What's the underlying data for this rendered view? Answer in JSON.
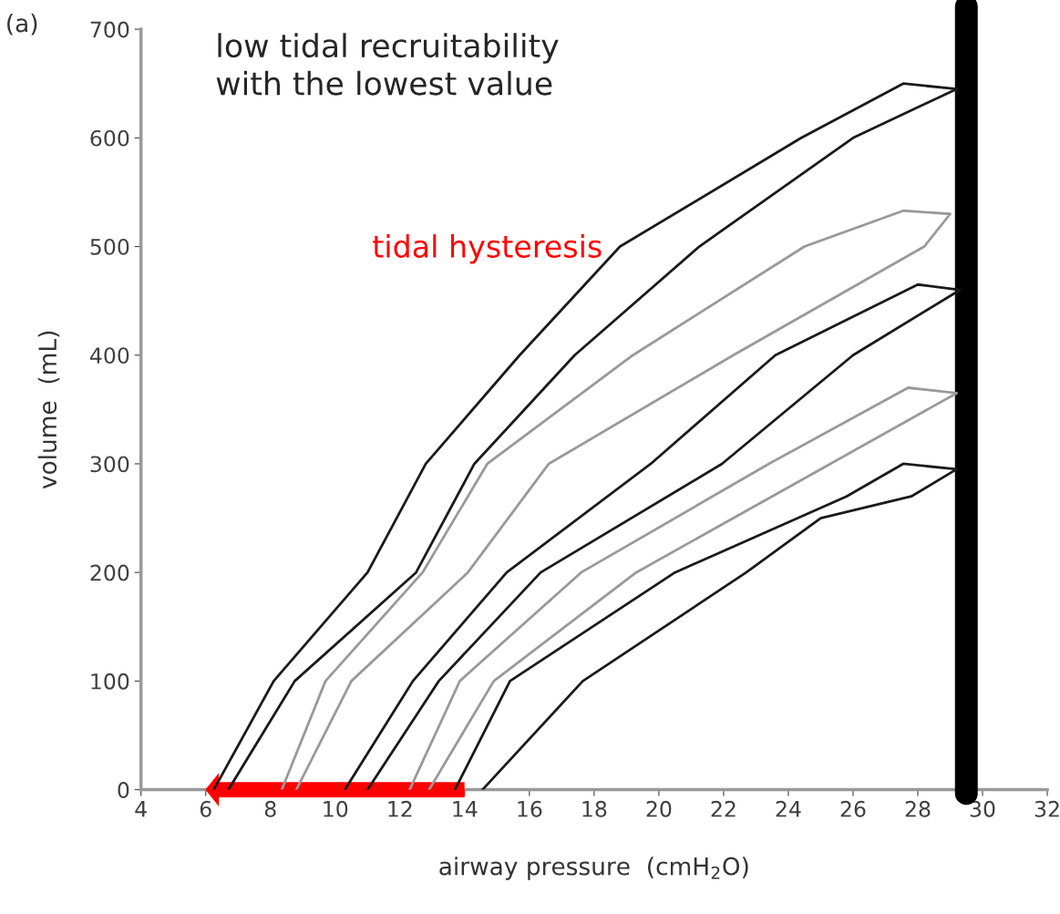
{
  "chart_data": {
    "type": "line",
    "xlabel": "airway pressure  (cmH$_{2}$O)",
    "ylabel": "volume  (mL)",
    "xlim": [
      4,
      32
    ],
    "xticks": [
      4,
      6,
      8,
      10,
      12,
      14,
      16,
      18,
      20,
      22,
      24,
      26,
      28,
      30,
      32
    ],
    "ylim": [
      0,
      700
    ],
    "yticks": [
      0,
      100,
      200,
      300,
      400,
      500,
      600,
      700
    ],
    "grid": false,
    "marker": "none",
    "line_style": "solid",
    "series": [
      {
        "color": "#1a1a1a",
        "x": [
          6.25,
          8.1,
          11.0,
          12.8,
          15.7,
          18.8,
          24.4,
          27.55,
          29.2,
          26.0,
          21.25,
          17.4,
          14.3,
          12.5,
          8.75,
          6.7
        ],
        "values": [
          0,
          100,
          200,
          300,
          400,
          500,
          600,
          650,
          645,
          600,
          500,
          400,
          300,
          200,
          100,
          0
        ]
      },
      {
        "color": "#999999",
        "x": [
          8.35,
          9.7,
          12.7,
          14.7,
          19.2,
          24.5,
          27.55,
          29.0,
          28.2,
          22.3,
          16.6,
          14.1,
          10.5,
          8.8
        ],
        "values": [
          0,
          100,
          200,
          300,
          400,
          500,
          533,
          530,
          500,
          400,
          300,
          200,
          100,
          0
        ]
      },
      {
        "color": "#1a1a1a",
        "x": [
          10.3,
          12.4,
          15.3,
          19.75,
          23.6,
          28.0,
          29.3,
          26.0,
          21.95,
          16.35,
          13.2,
          11.0
        ],
        "values": [
          0,
          100,
          200,
          300,
          400,
          465,
          460,
          400,
          300,
          200,
          100,
          0
        ]
      },
      {
        "color": "#999999",
        "x": [
          12.3,
          13.85,
          17.6,
          23.4,
          27.7,
          29.2,
          25.3,
          19.3,
          14.9,
          12.9
        ],
        "values": [
          0,
          100,
          200,
          300,
          370,
          365,
          300,
          200,
          100,
          0
        ]
      },
      {
        "color": "#1a1a1a",
        "x": [
          13.7,
          15.4,
          20.5,
          25.8,
          27.55,
          29.2,
          27.8,
          25.0,
          22.7,
          17.65,
          14.55
        ],
        "values": [
          0,
          100,
          200,
          270,
          300,
          295,
          270,
          250,
          200,
          100,
          0
        ]
      }
    ],
    "ref_lines": [
      {
        "axis": "x",
        "value": 29.5,
        "color": "#000000"
      }
    ],
    "annotations": [
      "(a)",
      "low tidal recruitability\nwith the lowest value",
      "tidal hysteresis"
    ]
  }
}
